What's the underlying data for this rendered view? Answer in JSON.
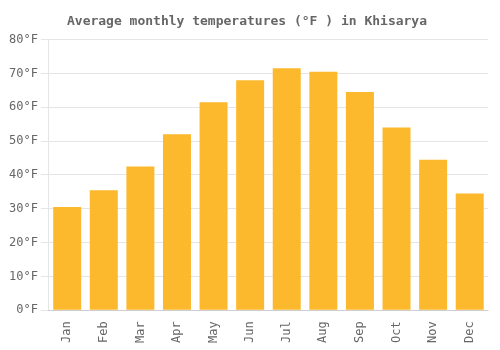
{
  "chart_data": {
    "type": "bar",
    "title": "Average monthly temperatures (°F ) in Khisarya",
    "categories": [
      "Jan",
      "Feb",
      "Mar",
      "Apr",
      "May",
      "Jun",
      "Jul",
      "Aug",
      "Sep",
      "Oct",
      "Nov",
      "Dec"
    ],
    "values": [
      30.5,
      35.5,
      42.5,
      52.0,
      61.5,
      68.0,
      71.5,
      70.5,
      64.5,
      54.0,
      44.5,
      34.5
    ],
    "color": "#FDB92E",
    "ylim": [
      0,
      80
    ],
    "yticks": [
      {
        "value": 0,
        "label": "0°F"
      },
      {
        "value": 10,
        "label": "10°F"
      },
      {
        "value": 20,
        "label": "20°F"
      },
      {
        "value": 30,
        "label": "30°F"
      },
      {
        "value": 40,
        "label": "40°F"
      },
      {
        "value": 50,
        "label": "50°F"
      },
      {
        "value": 60,
        "label": "60°F"
      },
      {
        "value": 70,
        "label": "70°F"
      },
      {
        "value": 80,
        "label": "80°F"
      }
    ],
    "grid": true
  }
}
